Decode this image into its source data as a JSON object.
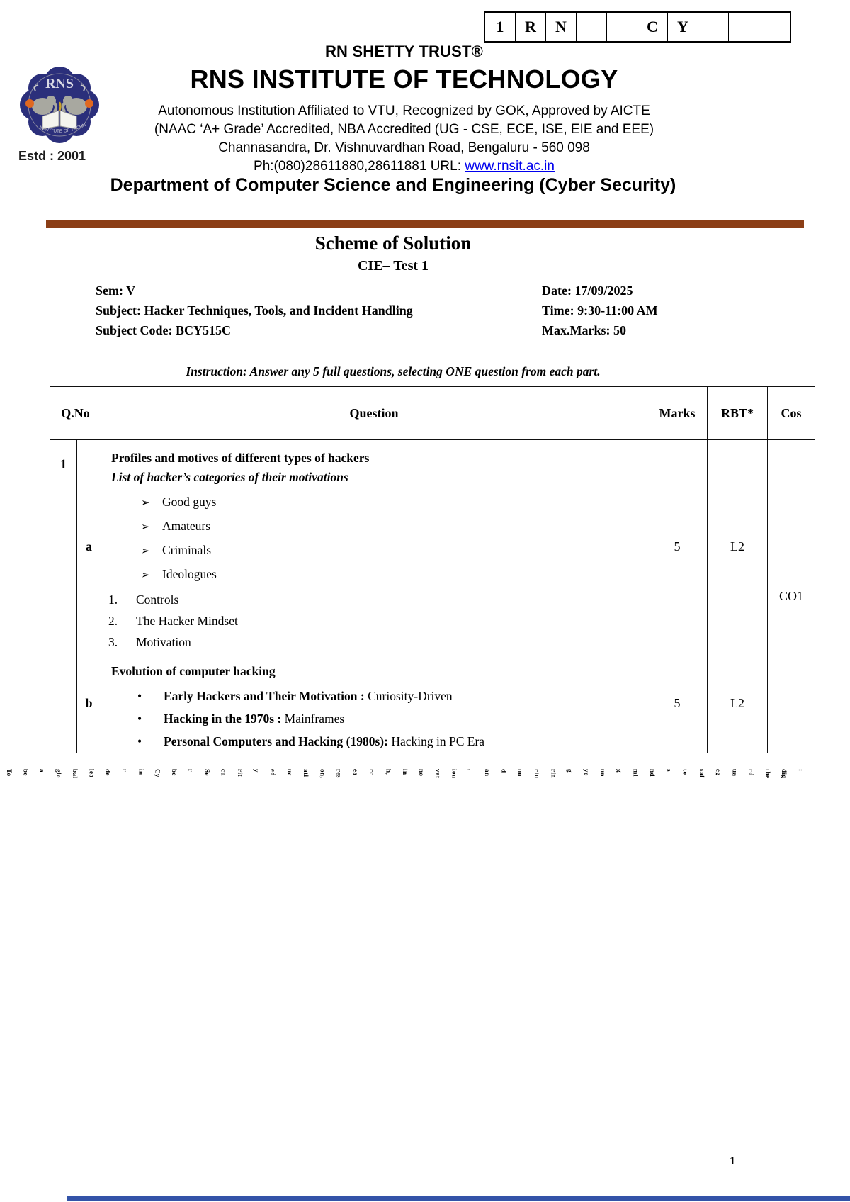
{
  "usn_boxes": [
    "1",
    "R",
    "N",
    "",
    "",
    "C",
    "Y",
    "",
    "",
    ""
  ],
  "header": {
    "trust": "RN SHETTY TRUST®",
    "institute": "RNS INSTITUTE OF TECHNOLOGY",
    "address_lines": [
      "Autonomous Institution Affiliated to VTU, Recognized by GOK, Approved by AICTE",
      "(NAAC ‘A+ Grade’ Accredited, NBA Accredited (UG - CSE, ECE, ISE, EIE and EEE)",
      "Channasandra, Dr. Vishnuvardhan Road, Bengaluru - 560 098"
    ],
    "phone_prefix": "Ph:(080)28611880,28611881 URL: ",
    "url": "www.rnsit.ac.in",
    "logo_monogram": "RNS",
    "logo_banner": "INSTITUTE OF TECHNOLOGY",
    "estd": "Estd : 2001"
  },
  "department": "Department of Computer Science and Engineering (Cyber Security)",
  "scheme_title": "Scheme of Solution",
  "test_title": "CIE– Test 1",
  "info": {
    "left_rows": [
      "Sem: V",
      "Subject: Hacker Techniques, Tools, and Incident Handling",
      "Subject Code: BCY515C"
    ],
    "right_rows": [
      "Date: 17/09/2025",
      "Time: 9:30-11:00 AM",
      "Max.Marks: 50"
    ]
  },
  "instruction": "Instruction: Answer any 5 full questions, selecting ONE question from each part.",
  "table": {
    "headers": {
      "qno": "Q.No",
      "question": "Question",
      "marks": "Marks",
      "rbt": "RBT*",
      "cos": "Cos"
    },
    "row_number": "1",
    "cos_value": "CO1",
    "sub_a": {
      "label": "a",
      "title": "Profiles and motives of different types of hackers",
      "subtitle": "List of hacker’s categories of their motivations",
      "arrow_items": [
        "Good guys",
        "Amateurs",
        "Criminals",
        "Ideologues"
      ],
      "numbered_items": [
        "Controls",
        "The Hacker Mindset",
        "Motivation"
      ],
      "marks": "5",
      "rbt": "L2"
    },
    "sub_b": {
      "label": "b",
      "title": "Evolution of computer hacking",
      "bullets": [
        {
          "bold": "Early Hackers and Their Motivation :",
          "rest": " Curiosity-Driven"
        },
        {
          "bold": "Hacking in the 1970s :",
          "rest": " Mainframes"
        },
        {
          "bold": "Personal Computers and Hacking (1980s):",
          "rest": " Hacking in PC Era"
        }
      ],
      "marks": "5",
      "rbt": "L2"
    }
  },
  "footer": {
    "rotated_fragments": [
      "To",
      "be",
      "a",
      "glo",
      "bal",
      "lea",
      "de",
      "r",
      "in",
      "Cy",
      "be",
      "r",
      "Se",
      "cu",
      "rit",
      "y",
      "ed",
      "uc",
      "ati",
      "on,",
      "res",
      "ea",
      "rc",
      "h,",
      "in",
      "no",
      "vat",
      "ion",
      ",",
      "an",
      "d",
      "nu",
      "rtu",
      "rin",
      "g",
      "yo",
      "un",
      "g",
      "mi",
      "nd",
      "s",
      "to",
      "saf",
      "eg",
      "ua",
      "rd",
      "the",
      "dig",
      ":"
    ],
    "page_number": "1"
  },
  "colors": {
    "accent_bar": "#8B3E16",
    "footer_bar": "#3353A8",
    "link": "#0000EE",
    "logo_navy": "#2B2F7B",
    "logo_gray": "#A8A8A0",
    "logo_orange": "#E06820"
  }
}
